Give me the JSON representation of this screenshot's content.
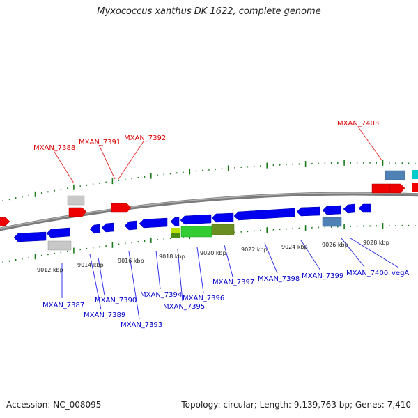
{
  "title": "Myxococcus xanthus DK 1622, complete genome",
  "footer": {
    "accession": "Accession: NC_008095",
    "topology": "Topology: circular; Length: 9,139,763 bp; Genes: 7,410"
  },
  "colors": {
    "forward_gene": "#ff0000",
    "reverse_gene": "#0000ee",
    "rna_light_gray": "#c8c8c8",
    "steel_blue": "#4f81b5",
    "cyan": "#00d0d0",
    "green": "#33cc33",
    "olive": "#6b8e23",
    "yellow_green": "#b8e000",
    "backbone": "#888888",
    "tick": "#1a7a1a",
    "label_forward": "#dd0000",
    "label_reverse": "#0000cc"
  },
  "scale_labels": [
    "9012 kbp",
    "9014 kbp",
    "9016 kbp",
    "9018 kbp",
    "9020 kbp",
    "9022 kbp",
    "9024 kbp",
    "9026 kbp",
    "9028 kbp"
  ],
  "gene_labels_top": [
    "MXAN_7388",
    "MXAN_7391",
    "MXAN_7392",
    "MXAN_7403"
  ],
  "gene_labels_bottom": [
    "MXAN_7387",
    "MXAN_7390",
    "MXAN_7389",
    "MXAN_7393",
    "MXAN_7394",
    "MXAN_7395",
    "MXAN_7396",
    "MXAN_7397",
    "MXAN_7398",
    "MXAN_7399",
    "MXAN_7400",
    "vegA"
  ]
}
